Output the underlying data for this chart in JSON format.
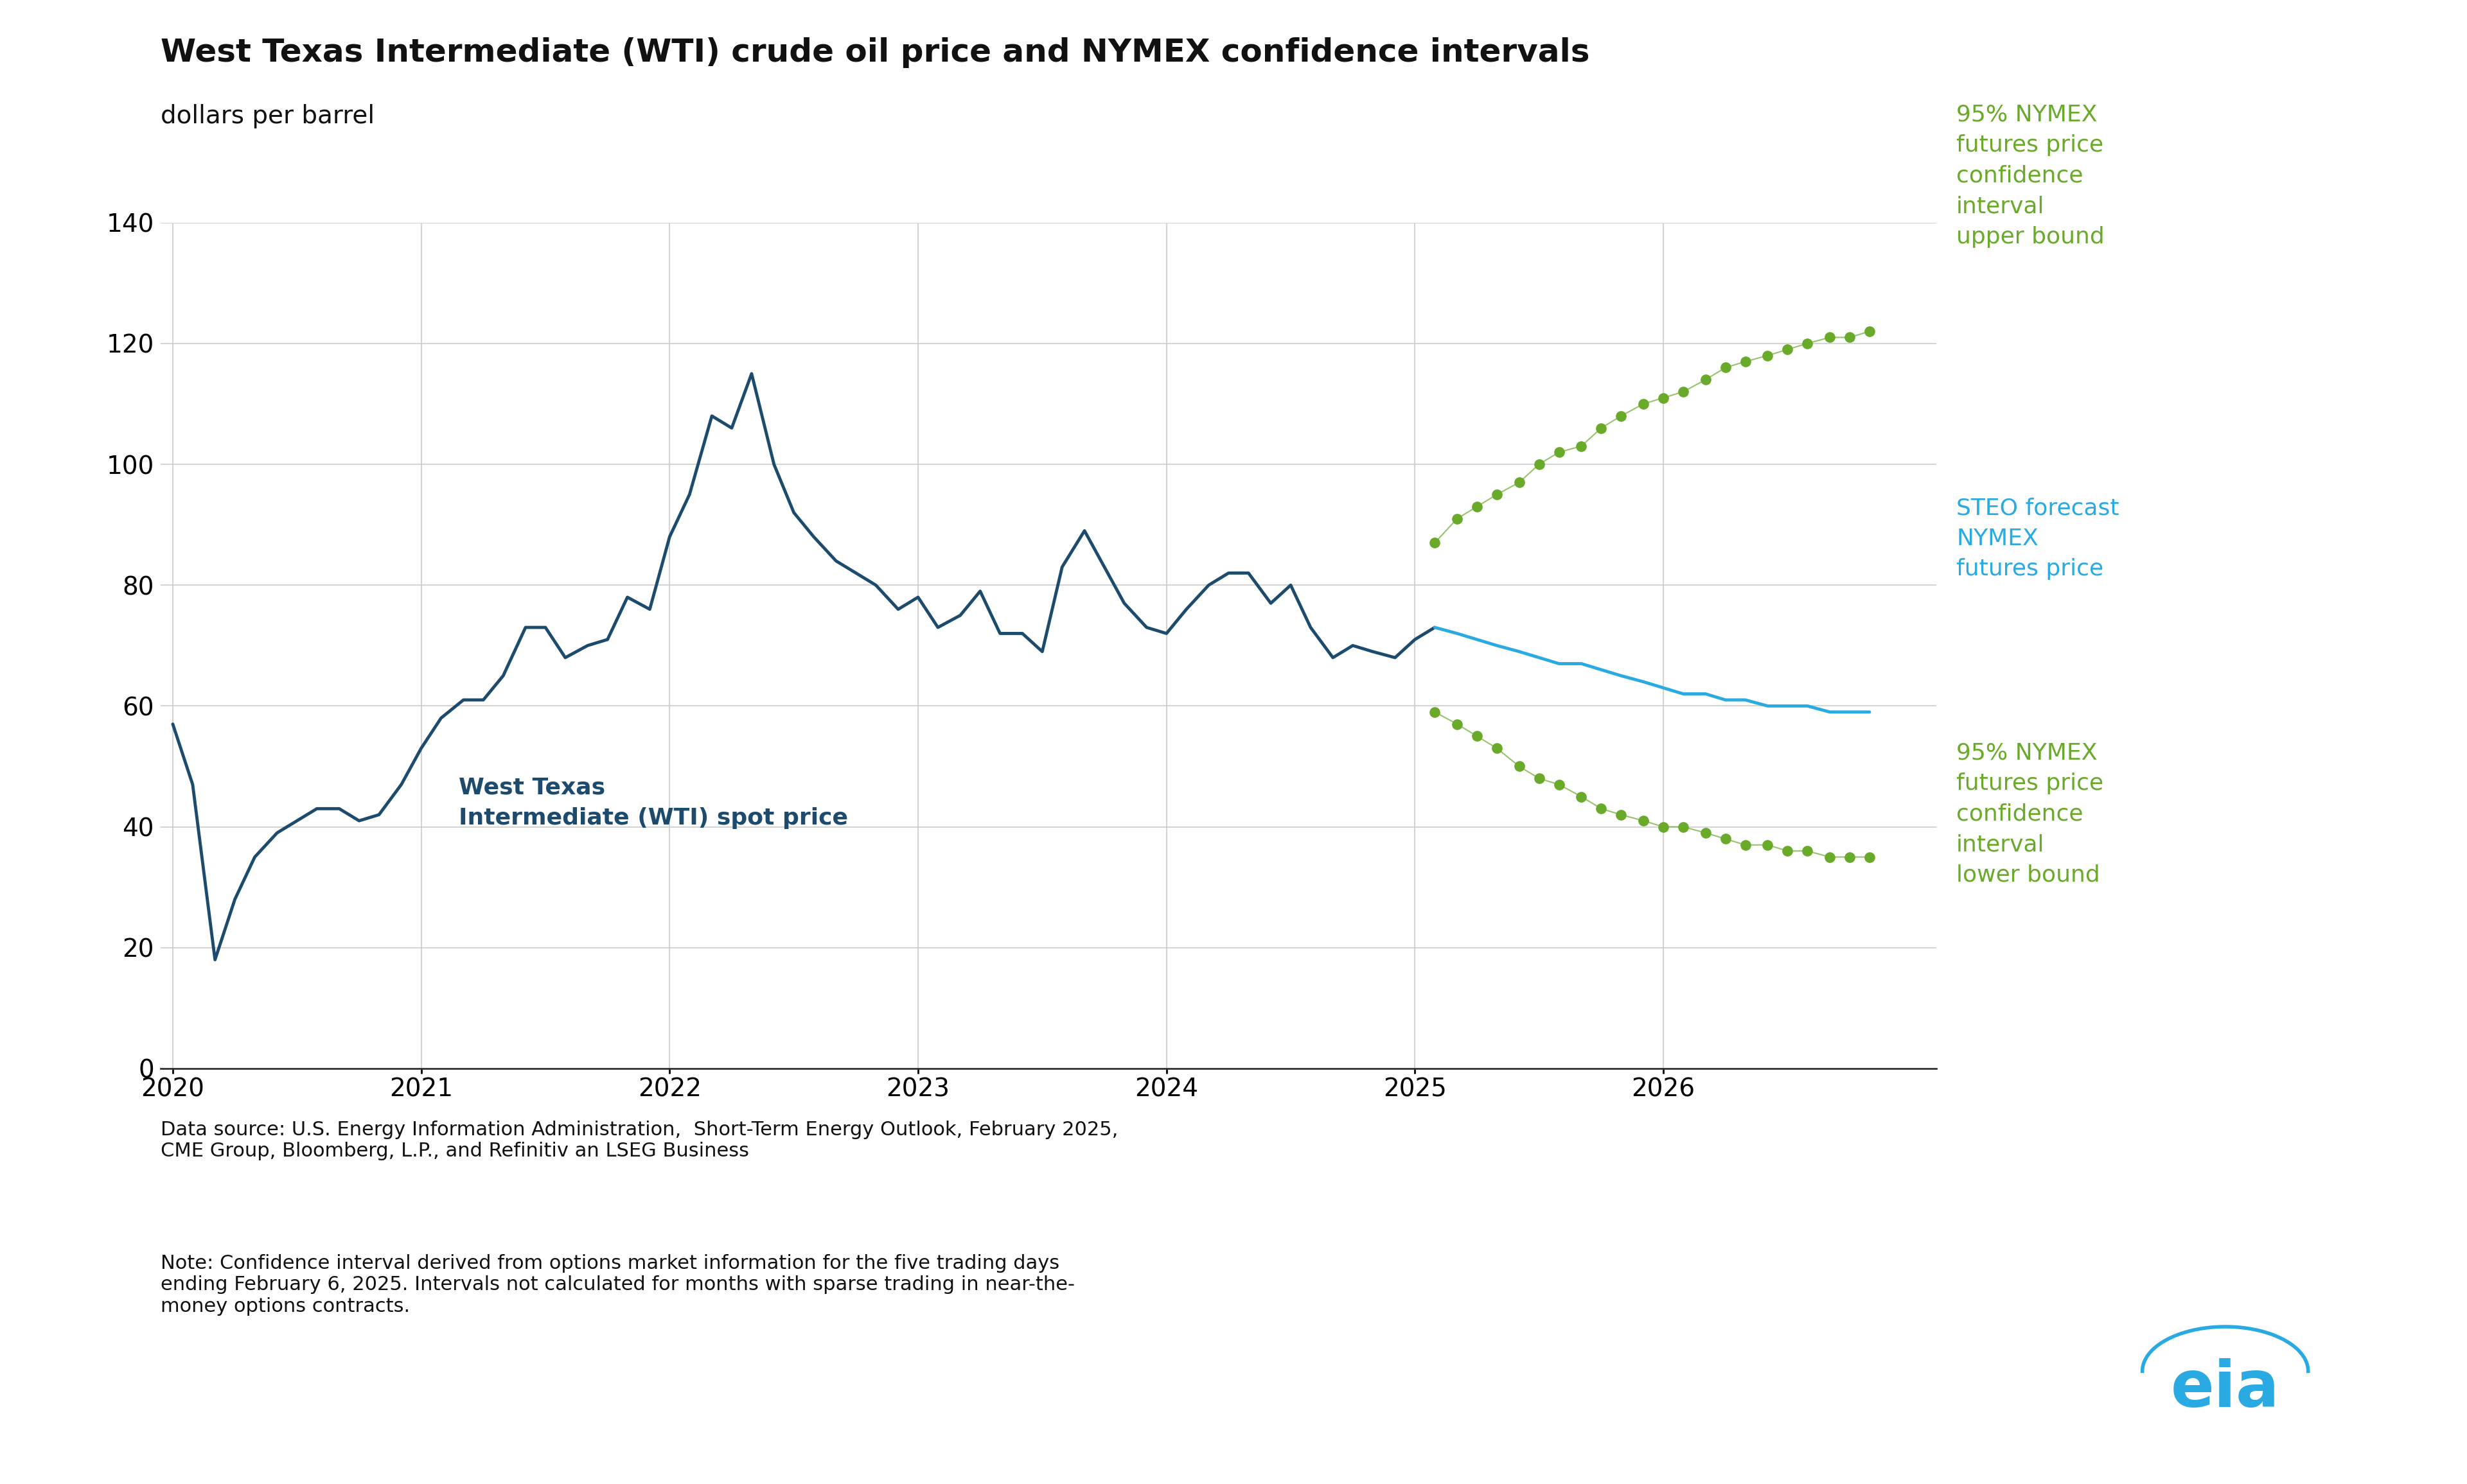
{
  "title": "West Texas Intermediate (WTI) crude oil price and NYMEX confidence intervals",
  "subtitle": "dollars per barrel",
  "background_color": "#ffffff",
  "title_fontsize": 36,
  "subtitle_fontsize": 28,
  "tick_fontsize": 28,
  "annotation_fontsize": 26,
  "source_fontsize": 22,
  "wti_color": "#1c4b6e",
  "nymex_color": "#29aae2",
  "upper_bound_color": "#6aaa2a",
  "lower_bound_color": "#6aaa2a",
  "ylim": [
    0,
    140
  ],
  "yticks": [
    0,
    20,
    40,
    60,
    80,
    100,
    120,
    140
  ],
  "xlim_start": 2019.95,
  "xlim_end": 2027.1,
  "source_text": "Data source: U.S. Energy Information Administration,  Short-Term Energy Outlook, February 2025,\nCME Group, Bloomberg, L.P., and Refinitiv an LSEG Business",
  "note_text": "Note: Confidence interval derived from options market information for the five trading days\nending February 6, 2025. Intervals not calculated for months with sparse trading in near-the-\nmoney options contracts.",
  "wti_label": "West Texas\nIntermediate (WTI) spot price",
  "upper_label": "95% NYMEX\nfutures price\nconfidence\ninterval\nupper bound",
  "nymex_label": "STEO forecast\nNYMEX\nfutures price",
  "lower_label": "95% NYMEX\nfutures price\nconfidence\ninterval\nlower bound",
  "wti_x": [
    2020.0,
    2020.08,
    2020.17,
    2020.25,
    2020.33,
    2020.42,
    2020.5,
    2020.58,
    2020.67,
    2020.75,
    2020.83,
    2020.92,
    2021.0,
    2021.08,
    2021.17,
    2021.25,
    2021.33,
    2021.42,
    2021.5,
    2021.58,
    2021.67,
    2021.75,
    2021.83,
    2021.92,
    2022.0,
    2022.08,
    2022.17,
    2022.25,
    2022.33,
    2022.42,
    2022.5,
    2022.58,
    2022.67,
    2022.75,
    2022.83,
    2022.92,
    2023.0,
    2023.08,
    2023.17,
    2023.25,
    2023.33,
    2023.42,
    2023.5,
    2023.58,
    2023.67,
    2023.75,
    2023.83,
    2023.92,
    2024.0,
    2024.08,
    2024.17,
    2024.25,
    2024.33,
    2024.42,
    2024.5,
    2024.58,
    2024.67,
    2024.75,
    2024.83,
    2024.92,
    2025.0,
    2025.08
  ],
  "wti_y": [
    57,
    47,
    18,
    28,
    35,
    39,
    41,
    43,
    43,
    41,
    42,
    47,
    53,
    58,
    61,
    61,
    65,
    73,
    73,
    68,
    70,
    71,
    78,
    76,
    88,
    95,
    108,
    106,
    115,
    100,
    92,
    88,
    84,
    82,
    80,
    76,
    78,
    73,
    75,
    79,
    72,
    72,
    69,
    83,
    89,
    83,
    77,
    73,
    72,
    76,
    80,
    82,
    82,
    77,
    80,
    73,
    68,
    70,
    69,
    68,
    71,
    73
  ],
  "nymex_x": [
    2025.08,
    2025.17,
    2025.25,
    2025.33,
    2025.42,
    2025.5,
    2025.58,
    2025.67,
    2025.75,
    2025.83,
    2025.92,
    2026.0,
    2026.08,
    2026.17,
    2026.25,
    2026.33,
    2026.42,
    2026.5,
    2026.58,
    2026.67,
    2026.75,
    2026.83
  ],
  "nymex_y": [
    73,
    72,
    71,
    70,
    69,
    68,
    67,
    67,
    66,
    65,
    64,
    63,
    62,
    62,
    61,
    61,
    60,
    60,
    60,
    59,
    59,
    59
  ],
  "upper_x": [
    2025.08,
    2025.17,
    2025.25,
    2025.33,
    2025.42,
    2025.5,
    2025.58,
    2025.67,
    2025.75,
    2025.83,
    2025.92,
    2026.0,
    2026.08,
    2026.17,
    2026.25,
    2026.33,
    2026.42,
    2026.5,
    2026.58,
    2026.67,
    2026.75,
    2026.83
  ],
  "upper_y": [
    87,
    91,
    93,
    95,
    97,
    100,
    102,
    103,
    106,
    108,
    110,
    111,
    112,
    114,
    116,
    117,
    118,
    119,
    120,
    121,
    121,
    122
  ],
  "lower_x": [
    2025.08,
    2025.17,
    2025.25,
    2025.33,
    2025.42,
    2025.5,
    2025.58,
    2025.67,
    2025.75,
    2025.83,
    2025.92,
    2026.0,
    2026.08,
    2026.17,
    2026.25,
    2026.33,
    2026.42,
    2026.5,
    2026.58,
    2026.67,
    2026.75,
    2026.83
  ],
  "lower_y": [
    59,
    57,
    55,
    53,
    50,
    48,
    47,
    45,
    43,
    42,
    41,
    40,
    40,
    39,
    38,
    37,
    37,
    36,
    36,
    35,
    35,
    35
  ],
  "xtick_positions": [
    2020,
    2021,
    2022,
    2023,
    2024,
    2025,
    2026
  ],
  "xtick_labels": [
    "2020",
    "2021",
    "2022",
    "2023",
    "2024",
    "2025",
    "2026"
  ]
}
